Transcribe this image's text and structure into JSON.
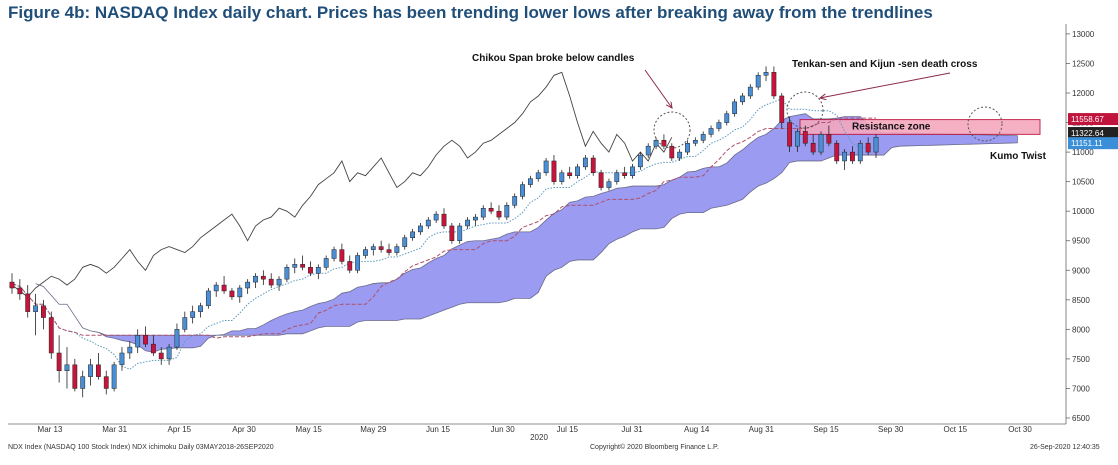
{
  "chart_data": {
    "type": "candlestick",
    "title": "Figure 4b: NASDAQ Index daily chart. Prices has been trending lower lows after breaking away from the trendlines",
    "ylim": [
      6500,
      13100
    ],
    "y_ticks": [
      6500,
      7000,
      7500,
      8000,
      8500,
      9000,
      9500,
      10000,
      10500,
      11000,
      11500,
      12000,
      12500,
      13000
    ],
    "x_ticks": [
      "Mar 13",
      "Mar 31",
      "Apr 15",
      "Apr 30",
      "May 15",
      "May 29",
      "Jun 15",
      "Jun 30",
      "Jul 15",
      "Jul 31",
      "Aug 14",
      "Aug 31",
      "Sep 15",
      "Sep 30",
      "Oct 15",
      "Oct 30"
    ],
    "x_year": "2020",
    "axis_side": "right",
    "grid": false,
    "price_labels": [
      {
        "text": "11558.67",
        "value": 11558.67,
        "color": "#c0143c"
      },
      {
        "text": "11322.64",
        "value": 11322.64,
        "color": "#222222"
      },
      {
        "text": "11151.11",
        "value": 11151.11,
        "color": "#3a8fd8"
      }
    ],
    "resistance_zone": {
      "label": "Resistance zone",
      "low": 11300,
      "high": 11550
    },
    "annotations": {
      "chikou": "Chikou Span broke below candles",
      "tk_cross": "Tenkan-sen and Kijun -sen death cross",
      "kumo": "Kumo Twist"
    },
    "series_colors": {
      "up": "#4a8fd6",
      "down": "#c8143c",
      "chikou": "#444444",
      "tenkan": "#5a9abf",
      "kijun": "#b0506a",
      "cloud": "#9b9bf2",
      "cloud_edge": "#6a6a8a"
    },
    "candles": [
      [
        8800,
        8950,
        8600,
        8700
      ],
      [
        8700,
        8850,
        8500,
        8600
      ],
      [
        8600,
        8750,
        8200,
        8300
      ],
      [
        8300,
        8600,
        7900,
        8400
      ],
      [
        8400,
        8500,
        8000,
        8200
      ],
      [
        8200,
        8300,
        7500,
        7600
      ],
      [
        7600,
        7900,
        7100,
        7300
      ],
      [
        7300,
        7700,
        7000,
        7400
      ],
      [
        7400,
        7500,
        6950,
        7000
      ],
      [
        7000,
        7300,
        6850,
        7200
      ],
      [
        7200,
        7500,
        7050,
        7400
      ],
      [
        7400,
        7600,
        7150,
        7200
      ],
      [
        7200,
        7300,
        6900,
        7000
      ],
      [
        7000,
        7450,
        6950,
        7400
      ],
      [
        7400,
        7700,
        7300,
        7600
      ],
      [
        7600,
        7800,
        7500,
        7700
      ],
      [
        7700,
        8000,
        7600,
        7900
      ],
      [
        7900,
        8050,
        7700,
        7750
      ],
      [
        7750,
        7900,
        7550,
        7600
      ],
      [
        7600,
        7700,
        7400,
        7500
      ],
      [
        7500,
        7750,
        7400,
        7700
      ],
      [
        7700,
        8100,
        7650,
        8000
      ],
      [
        8000,
        8300,
        7950,
        8200
      ],
      [
        8200,
        8400,
        8100,
        8300
      ],
      [
        8300,
        8450,
        8200,
        8400
      ],
      [
        8400,
        8700,
        8350,
        8650
      ],
      [
        8650,
        8800,
        8550,
        8750
      ],
      [
        8750,
        8900,
        8600,
        8650
      ],
      [
        8650,
        8700,
        8500,
        8550
      ],
      [
        8550,
        8750,
        8450,
        8700
      ],
      [
        8700,
        8850,
        8600,
        8800
      ],
      [
        8800,
        8950,
        8700,
        8900
      ],
      [
        8900,
        9000,
        8750,
        8850
      ],
      [
        8850,
        8950,
        8700,
        8750
      ],
      [
        8750,
        8900,
        8650,
        8850
      ],
      [
        8850,
        9100,
        8800,
        9050
      ],
      [
        9050,
        9200,
        8950,
        9100
      ],
      [
        9100,
        9250,
        9000,
        9050
      ],
      [
        9050,
        9150,
        8900,
        8950
      ],
      [
        8950,
        9100,
        8850,
        9050
      ],
      [
        9050,
        9250,
        9000,
        9200
      ],
      [
        9200,
        9400,
        9150,
        9350
      ],
      [
        9350,
        9450,
        9100,
        9150
      ],
      [
        9150,
        9250,
        8950,
        9000
      ],
      [
        9000,
        9300,
        8950,
        9250
      ],
      [
        9250,
        9400,
        9200,
        9350
      ],
      [
        9350,
        9450,
        9250,
        9400
      ],
      [
        9400,
        9500,
        9300,
        9350
      ],
      [
        9350,
        9450,
        9250,
        9300
      ],
      [
        9300,
        9450,
        9250,
        9400
      ],
      [
        9400,
        9600,
        9350,
        9550
      ],
      [
        9550,
        9700,
        9500,
        9650
      ],
      [
        9650,
        9800,
        9600,
        9750
      ],
      [
        9750,
        9900,
        9700,
        9850
      ],
      [
        9850,
        10000,
        9800,
        9950
      ],
      [
        9950,
        10050,
        9700,
        9750
      ],
      [
        9750,
        9800,
        9450,
        9500
      ],
      [
        9500,
        9800,
        9450,
        9750
      ],
      [
        9750,
        9900,
        9700,
        9850
      ],
      [
        9850,
        9950,
        9750,
        9900
      ],
      [
        9900,
        10100,
        9850,
        10050
      ],
      [
        10050,
        10150,
        9950,
        10000
      ],
      [
        10000,
        10100,
        9850,
        9900
      ],
      [
        9900,
        10150,
        9850,
        10100
      ],
      [
        10100,
        10300,
        10050,
        10250
      ],
      [
        10250,
        10500,
        10200,
        10450
      ],
      [
        10450,
        10600,
        10400,
        10550
      ],
      [
        10550,
        10700,
        10500,
        10650
      ],
      [
        10650,
        10900,
        10600,
        10850
      ],
      [
        10850,
        10950,
        10450,
        10500
      ],
      [
        10500,
        10700,
        10450,
        10650
      ],
      [
        10650,
        10750,
        10550,
        10600
      ],
      [
        10600,
        10800,
        10550,
        10750
      ],
      [
        10750,
        10950,
        10700,
        10900
      ],
      [
        10900,
        10950,
        10600,
        10650
      ],
      [
        10650,
        10700,
        10350,
        10400
      ],
      [
        10400,
        10550,
        10350,
        10500
      ],
      [
        10500,
        10700,
        10450,
        10650
      ],
      [
        10650,
        10750,
        10550,
        10600
      ],
      [
        10600,
        10800,
        10550,
        10750
      ],
      [
        10750,
        11000,
        10700,
        10950
      ],
      [
        10950,
        11150,
        10900,
        11100
      ],
      [
        11100,
        11250,
        11050,
        11200
      ],
      [
        11200,
        11300,
        11050,
        11100
      ],
      [
        11100,
        11150,
        10850,
        10900
      ],
      [
        10900,
        11050,
        10850,
        11000
      ],
      [
        11000,
        11200,
        10950,
        11150
      ],
      [
        11150,
        11250,
        11100,
        11200
      ],
      [
        11200,
        11350,
        11150,
        11300
      ],
      [
        11300,
        11450,
        11250,
        11400
      ],
      [
        11400,
        11550,
        11350,
        11500
      ],
      [
        11500,
        11700,
        11450,
        11650
      ],
      [
        11650,
        11900,
        11600,
        11850
      ],
      [
        11850,
        12000,
        11800,
        11950
      ],
      [
        11950,
        12150,
        11900,
        12100
      ],
      [
        12100,
        12350,
        12050,
        12300
      ],
      [
        12300,
        12450,
        12200,
        12350
      ],
      [
        12350,
        12450,
        11900,
        11950
      ],
      [
        11950,
        12000,
        11400,
        11500
      ],
      [
        11500,
        11600,
        11000,
        11100
      ],
      [
        11100,
        11400,
        11000,
        11350
      ],
      [
        11350,
        11450,
        11100,
        11150
      ],
      [
        11150,
        11300,
        10950,
        11000
      ],
      [
        11000,
        11350,
        10950,
        11300
      ],
      [
        11300,
        11450,
        11100,
        11150
      ],
      [
        11150,
        11200,
        10800,
        10850
      ],
      [
        10850,
        11050,
        10700,
        11000
      ],
      [
        11000,
        11100,
        10800,
        10850
      ],
      [
        10850,
        11200,
        10800,
        11150
      ],
      [
        11150,
        11250,
        10950,
        11000
      ],
      [
        11000,
        11300,
        10900,
        11250
      ]
    ]
  }
}
